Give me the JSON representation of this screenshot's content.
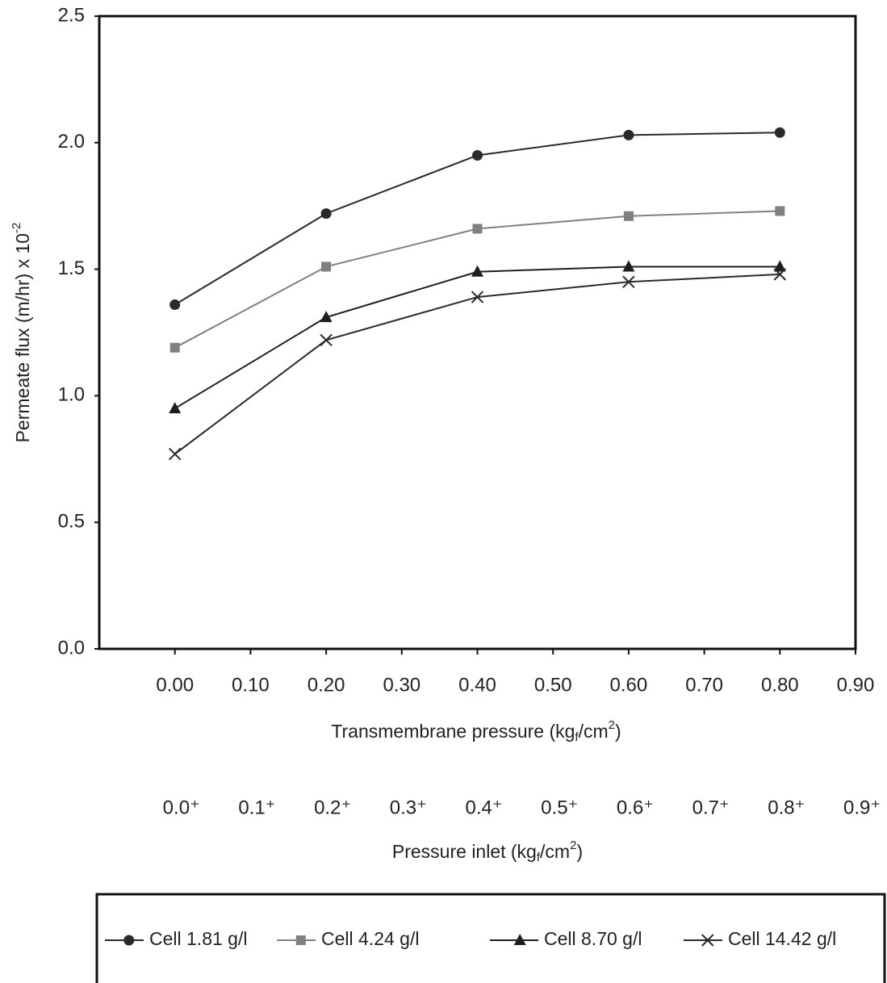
{
  "chart_data": {
    "type": "line",
    "xlabel": [
      "Transmembrane pressure  (kg",
      "f",
      "/cm",
      "2",
      ")"
    ],
    "ylabel": [
      "Permeate flux (m/hr) x 10",
      "-2"
    ],
    "x2label": [
      "Pressure inlet (kg",
      "f",
      "/cm",
      "2",
      ")"
    ],
    "x": [
      0,
      0.2,
      0.4,
      0.6,
      0.8
    ],
    "series": [
      {
        "name": "Cell 1.81 g/l",
        "color": "#2a2a2a",
        "marker": "circle",
        "values": [
          1.36,
          1.72,
          1.95,
          2.03,
          2.04
        ]
      },
      {
        "name": "Cell 4.24 g/l",
        "color": "#808080",
        "marker": "square",
        "values": [
          1.19,
          1.51,
          1.66,
          1.71,
          1.73
        ]
      },
      {
        "name": "Cell 8.70 g/l",
        "color": "#1e1e1e",
        "marker": "triangle",
        "values": [
          0.95,
          1.31,
          1.49,
          1.51,
          1.51
        ]
      },
      {
        "name": "Cell 14.42 g/l",
        "color": "#2a2a2a",
        "marker": "x",
        "values": [
          0.77,
          1.22,
          1.39,
          1.45,
          1.48
        ]
      }
    ],
    "xlim": [
      -0.1,
      0.9
    ],
    "ylim": [
      0,
      2.5
    ],
    "xticks": [
      {
        "value": 0,
        "label": "0.00"
      },
      {
        "value": 0.1,
        "label": "0.10"
      },
      {
        "value": 0.2,
        "label": "0.20"
      },
      {
        "value": 0.3,
        "label": "0.30"
      },
      {
        "value": 0.4,
        "label": "0.40"
      },
      {
        "value": 0.5,
        "label": "0.50"
      },
      {
        "value": 0.6,
        "label": "0.60"
      },
      {
        "value": 0.7,
        "label": "0.70"
      },
      {
        "value": 0.8,
        "label": "0.80"
      },
      {
        "value": 0.9,
        "label": "0.90"
      }
    ],
    "yticks": [
      {
        "value": 0,
        "label": "0.0"
      },
      {
        "value": 0.5,
        "label": "0.5"
      },
      {
        "value": 1,
        "label": "1.0"
      },
      {
        "value": 1.5,
        "label": "1.5"
      },
      {
        "value": 2,
        "label": "2.0"
      },
      {
        "value": 2.5,
        "label": "2.5"
      }
    ],
    "x2ticks": [
      {
        "value": 0,
        "label": "0.0⁺"
      },
      {
        "value": 0.1,
        "label": "0.1⁺"
      },
      {
        "value": 0.2,
        "label": "0.2⁺"
      },
      {
        "value": 0.3,
        "label": "0.3⁺"
      },
      {
        "value": 0.4,
        "label": "0.4⁺"
      },
      {
        "value": 0.5,
        "label": "0.5⁺"
      },
      {
        "value": 0.6,
        "label": "0.6⁺"
      },
      {
        "value": 0.7,
        "label": "0.7⁺"
      },
      {
        "value": 0.8,
        "label": "0.8⁺"
      },
      {
        "value": 0.9,
        "label": "0.9⁺"
      }
    ],
    "legend": "bottom",
    "grid": false
  }
}
